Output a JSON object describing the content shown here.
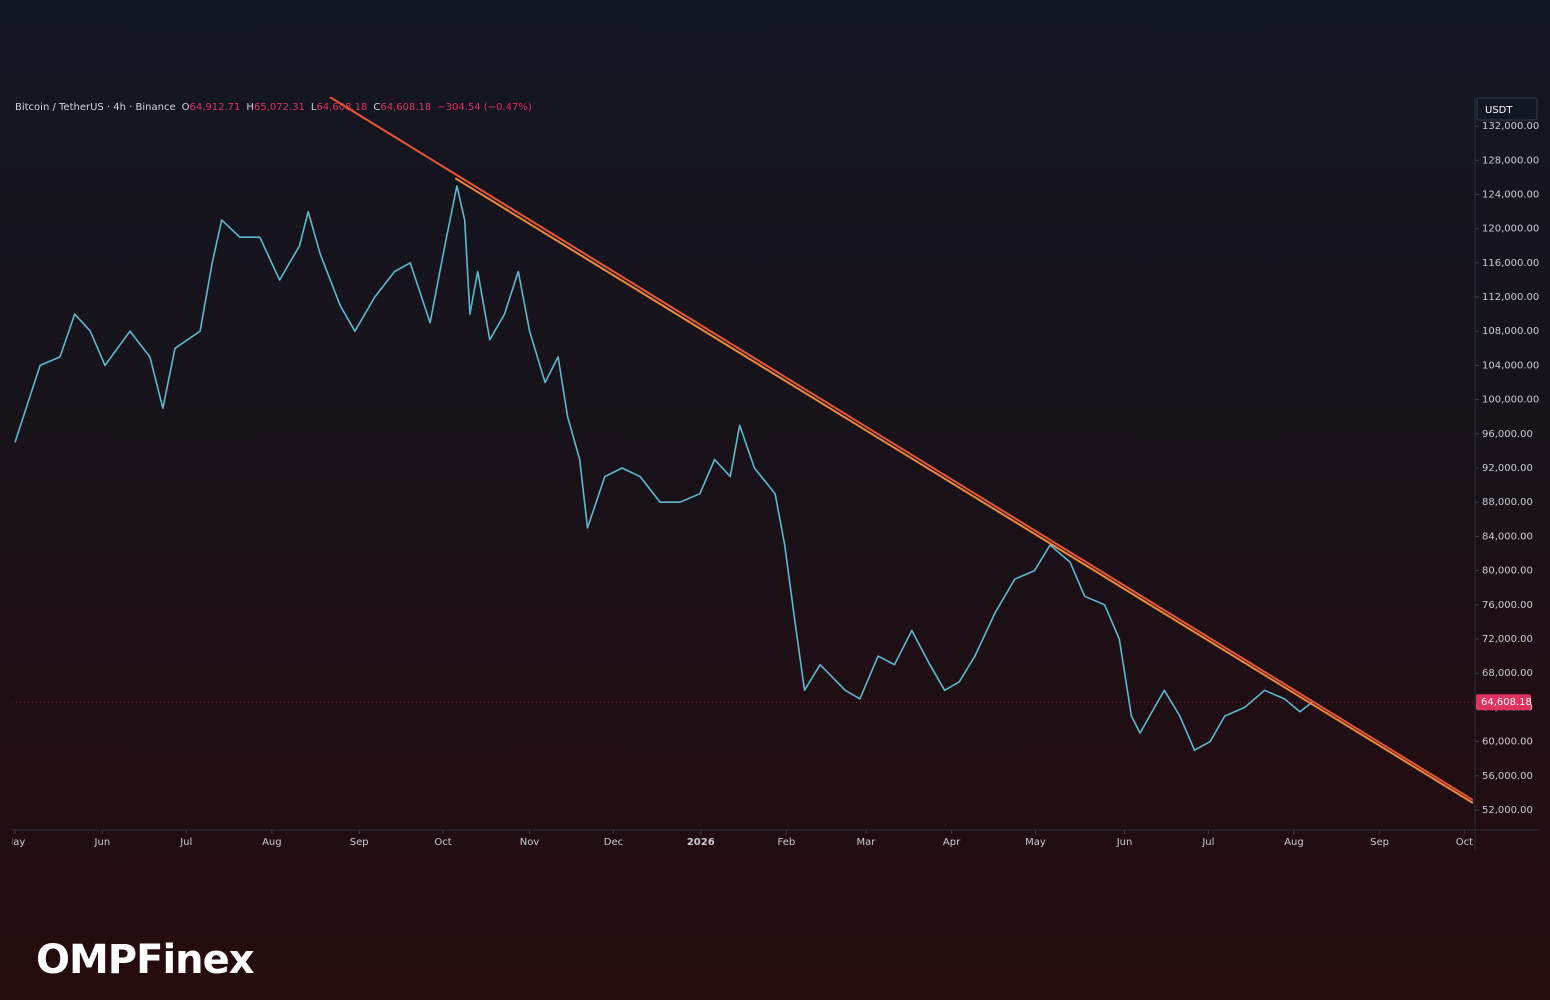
{
  "chart_data": {
    "type": "line",
    "symbol": "Bitcoin / TetherUS · 4h · Binance",
    "ohlc": [
      {
        "label": "O",
        "value": "64,912.71"
      },
      {
        "label": "H",
        "value": "65,072.31"
      },
      {
        "label": "L",
        "value": "64,608.18"
      },
      {
        "label": "C",
        "value": "64,608.18"
      }
    ],
    "change": "−304.54 (−0.47%)",
    "currency": "USDT",
    "last_price": {
      "value": 64608.18,
      "label": "64,608.18"
    },
    "logo": "OMPFinex",
    "xlim": [
      -0.035,
      16.86
    ],
    "xticks": [
      {
        "value": 0,
        "label": "May"
      },
      {
        "value": 1.01,
        "label": "Jun"
      },
      {
        "value": 1.98,
        "label": "Jul"
      },
      {
        "value": 2.97,
        "label": "Aug"
      },
      {
        "value": 3.98,
        "label": "Sep"
      },
      {
        "value": 4.95,
        "label": "Oct"
      },
      {
        "value": 5.95,
        "label": "Nov"
      },
      {
        "value": 6.92,
        "label": "Dec"
      },
      {
        "value": 7.93,
        "label": "2026"
      },
      {
        "value": 8.92,
        "label": "Feb"
      },
      {
        "value": 9.84,
        "label": "Mar"
      },
      {
        "value": 10.83,
        "label": "Apr"
      },
      {
        "value": 11.8,
        "label": "May"
      },
      {
        "value": 12.83,
        "label": "Jun"
      },
      {
        "value": 13.8,
        "label": "Jul"
      },
      {
        "value": 14.79,
        "label": "Aug"
      },
      {
        "value": 15.78,
        "label": "Sep"
      },
      {
        "value": 16.76,
        "label": "Oct"
      }
    ],
    "ylim": [
      49660,
      135400
    ],
    "yticks": [
      {
        "value": 52000,
        "label": "52,000.00"
      },
      {
        "value": 56000,
        "label": "56,000.00"
      },
      {
        "value": 60000,
        "label": "60,000.00"
      },
      {
        "value": 64000,
        "label": "64,000.00"
      },
      {
        "value": 68000,
        "label": "68,000.00"
      },
      {
        "value": 72000,
        "label": "72,000.00"
      },
      {
        "value": 76000,
        "label": "76,000.00"
      },
      {
        "value": 80000,
        "label": "80,000.00"
      },
      {
        "value": 84000,
        "label": "84,000.00"
      },
      {
        "value": 88000,
        "label": "88,000.00"
      },
      {
        "value": 92000,
        "label": "92,000.00"
      },
      {
        "value": 96000,
        "label": "96,000.00"
      },
      {
        "value": 100000,
        "label": "100,000.00"
      },
      {
        "value": 104000,
        "label": "104,000.00"
      },
      {
        "value": 108000,
        "label": "108,000.00"
      },
      {
        "value": 112000,
        "label": "112,000.00"
      },
      {
        "value": 116000,
        "label": "116,000.00"
      },
      {
        "value": 120000,
        "label": "120,000.00"
      },
      {
        "value": 124000,
        "label": "124,000.00"
      },
      {
        "value": 128000,
        "label": "128,000.00"
      },
      {
        "value": 132000,
        "label": "132,000.00"
      }
    ],
    "series": [
      {
        "color": "#5fb8cf",
        "x": [
          0,
          0.29,
          0.52,
          0.69,
          0.87,
          1.04,
          1.33,
          1.56,
          1.71,
          1.85,
          2.14,
          2.28,
          2.39,
          2.6,
          2.83,
          3.06,
          3.29,
          3.39,
          3.53,
          3.76,
          3.93,
          4.16,
          4.39,
          4.57,
          4.8,
          4.97,
          5.11,
          5.2,
          5.26,
          5.35,
          5.49,
          5.66,
          5.82,
          5.95,
          6.13,
          6.28,
          6.39,
          6.53,
          6.62,
          6.82,
          7.02,
          7.23,
          7.46,
          7.69,
          7.92,
          8.09,
          8.27,
          8.38,
          8.55,
          8.79,
          8.9,
          9.02,
          9.13,
          9.31,
          9.6,
          9.77,
          9.98,
          10.17,
          10.37,
          10.58,
          10.75,
          10.92,
          11.1,
          11.33,
          11.56,
          11.79,
          11.97,
          12.2,
          12.37,
          12.6,
          12.77,
          12.91,
          13.01,
          13.12,
          13.29,
          13.47,
          13.64,
          13.82,
          13.99,
          14.22,
          14.45,
          14.68,
          14.86,
          15.0
        ],
        "values": [
          95000,
          104000,
          105000,
          110000,
          108000,
          104000,
          108000,
          105000,
          99000,
          106000,
          108000,
          116000,
          121000,
          119000,
          119000,
          114000,
          118000,
          122000,
          117000,
          111000,
          108000,
          112000,
          115000,
          116000,
          109000,
          118000,
          125000,
          121000,
          110000,
          115000,
          107000,
          110000,
          115000,
          108000,
          102000,
          105000,
          98000,
          93000,
          85000,
          91000,
          92000,
          91000,
          88000,
          88000,
          89000,
          93000,
          91000,
          97000,
          92000,
          89000,
          83000,
          74000,
          66000,
          69000,
          66000,
          65000,
          70000,
          69000,
          73000,
          69000,
          66000,
          67000,
          70000,
          75000,
          79000,
          80000,
          83000,
          81000,
          77000,
          76000,
          72000,
          63000,
          61000,
          63000,
          66000,
          63000,
          59000,
          60000,
          63000,
          64000,
          66000,
          65000,
          63500,
          64608.18
        ]
      }
    ],
    "trendlines": [
      {
        "color": "#e8553a",
        "x": [
          3.64,
          16.86
        ],
        "values": [
          135400,
          53170
        ]
      },
      {
        "color": "#f08a3c",
        "x": [
          5.09,
          16.86
        ],
        "values": [
          125900,
          52820
        ]
      }
    ]
  }
}
